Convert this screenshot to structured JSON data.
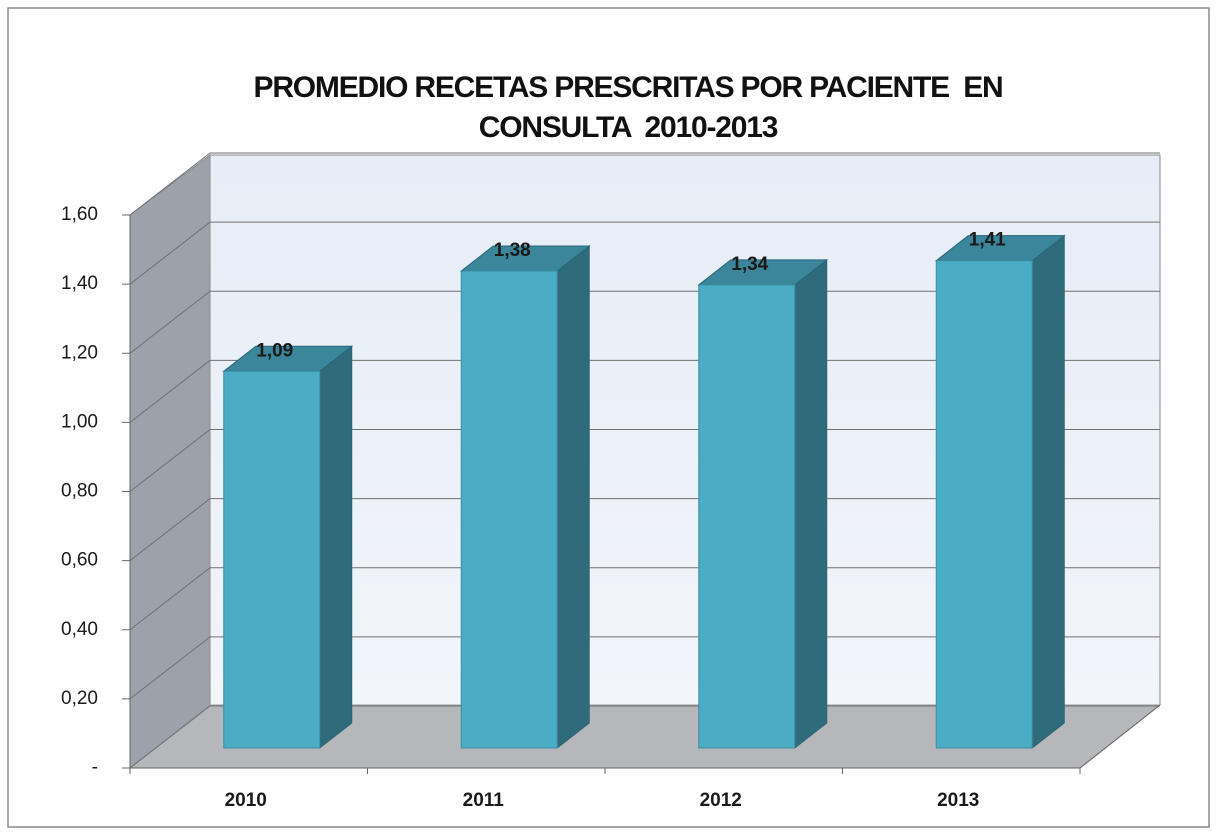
{
  "chart_data": {
    "type": "bar3d",
    "title": "PROMEDIO RECETAS PRESCRITAS POR PACIENTE  EN CONSULTA  2010-2013",
    "categories": [
      "2010",
      "2011",
      "2012",
      "2013"
    ],
    "values": [
      1.09,
      1.38,
      1.34,
      1.41
    ],
    "value_labels": [
      "1,09",
      "1,38",
      "1,34",
      "1,41"
    ],
    "color": "#4bacc6",
    "ylim": [
      0,
      1.6
    ],
    "yticks": [
      {
        "value": 0,
        "label": "-"
      },
      {
        "value": 0.2,
        "label": "0,20"
      },
      {
        "value": 0.4,
        "label": "0,40"
      },
      {
        "value": 0.6,
        "label": "0,60"
      },
      {
        "value": 0.8,
        "label": "0,80"
      },
      {
        "value": 1.0,
        "label": "1,00"
      },
      {
        "value": 1.2,
        "label": "1,20"
      },
      {
        "value": 1.4,
        "label": "1,40"
      },
      {
        "value": 1.6,
        "label": "1,60"
      }
    ],
    "grid": true
  }
}
